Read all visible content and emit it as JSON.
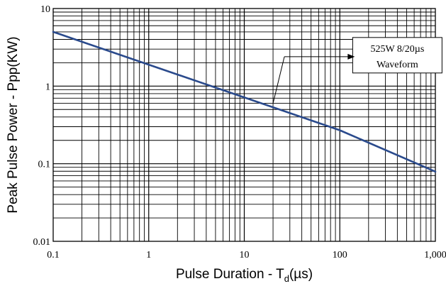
{
  "chart_data": {
    "type": "line",
    "title": "",
    "xlabel": "Pulse Duration  - T",
    "xlabel_sub": "d",
    "xlabel_suffix": "(µs)",
    "ylabel": "Peak Pulse Power - Ppp(KW)",
    "x_scale": "log",
    "y_scale": "log",
    "xlim": [
      0.1,
      1000
    ],
    "ylim": [
      0.01,
      10
    ],
    "grid": true,
    "legend": "none",
    "x_ticks": [
      {
        "value": 0.1,
        "label": "0.1"
      },
      {
        "value": 1,
        "label": "1"
      },
      {
        "value": 10,
        "label": "10"
      },
      {
        "value": 100,
        "label": "100"
      },
      {
        "value": 1000,
        "label": "1,000"
      }
    ],
    "y_ticks": [
      {
        "value": 0.01,
        "label": "0.01"
      },
      {
        "value": 0.1,
        "label": "0.1"
      },
      {
        "value": 1,
        "label": "1"
      },
      {
        "value": 10,
        "label": "10"
      }
    ],
    "series": [
      {
        "color": "#2a4a8c",
        "x": [
          0.1,
          1,
          10,
          100,
          1000
        ],
        "y": [
          5.0,
          1.89,
          0.715,
          0.27,
          0.079
        ]
      }
    ],
    "annotation": {
      "lines": [
        "525W 8/20µs",
        "Waveform"
      ],
      "box_x": 400,
      "box_y": 2.5,
      "arrow_from": [
        400,
        1.05
      ],
      "arrow_to": [
        20,
        0.6
      ]
    }
  }
}
